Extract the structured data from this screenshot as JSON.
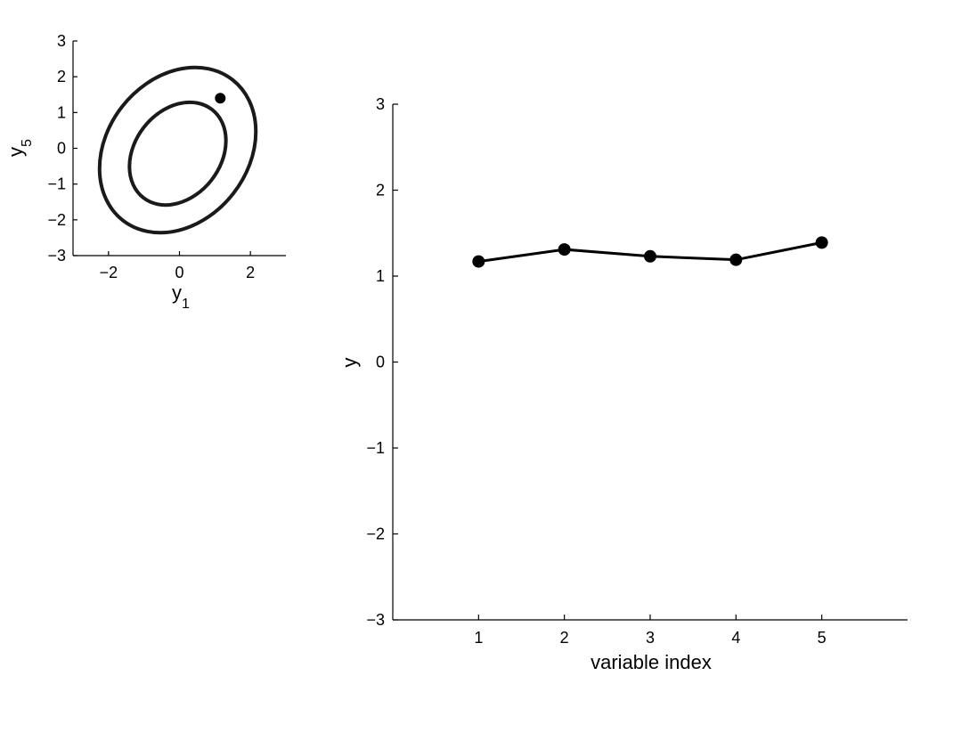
{
  "chart_data": [
    {
      "type": "scatter",
      "xlabel": "y",
      "xlabel_sub": "1",
      "ylabel": "y",
      "ylabel_sub": "5",
      "xlim": [
        -3,
        3
      ],
      "ylim": [
        -3,
        3
      ],
      "xticks": [
        -2,
        0,
        2
      ],
      "yticks": [
        -3,
        -2,
        -1,
        0,
        1,
        2,
        3
      ],
      "grid": false,
      "contours": [
        {
          "name": "inner",
          "center": [
            -0.05,
            -0.15
          ],
          "rx": 1.55,
          "ry": 1.68,
          "rotation_deg": 38
        },
        {
          "name": "outer",
          "center": [
            -0.05,
            -0.05
          ],
          "rx": 2.55,
          "ry": 2.68,
          "rotation_deg": 38
        }
      ],
      "points": [
        {
          "x": 1.15,
          "y": 1.4
        }
      ]
    },
    {
      "type": "line",
      "xlabel": "variable index",
      "ylabel": "y",
      "xlim": [
        0,
        6
      ],
      "ylim": [
        -3,
        3
      ],
      "xticks": [
        1,
        2,
        3,
        4,
        5
      ],
      "yticks": [
        -3,
        -2,
        -1,
        0,
        1,
        2,
        3
      ],
      "grid": false,
      "x": [
        1,
        2,
        3,
        4,
        5
      ],
      "series": [
        {
          "values": [
            1.17,
            1.31,
            1.23,
            1.19,
            1.39
          ],
          "markers": true
        }
      ]
    }
  ],
  "tick_minus_sign": "−"
}
